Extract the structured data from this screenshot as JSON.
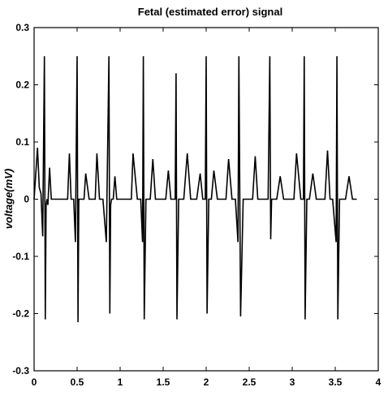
{
  "chart_data": {
    "type": "line",
    "title": "Fetal (estimated error) signal",
    "xlabel": "",
    "ylabel": "voltage(mV)",
    "xlim": [
      0,
      4
    ],
    "ylim": [
      -0.3,
      0.3
    ],
    "xticks": [
      "0",
      "0.5",
      "1",
      "1.5",
      "2",
      "2.5",
      "3",
      "3.5",
      "4"
    ],
    "yticks": [
      "0.3",
      "0.2",
      "0.1",
      "0",
      "-0.1",
      "-0.2",
      "-0.3"
    ],
    "grid": false,
    "series": [
      {
        "name": "",
        "color": "#000000",
        "x": [
          0.0,
          0.04,
          0.06,
          0.08,
          0.1,
          0.12,
          0.13,
          0.14,
          0.15,
          0.16,
          0.18,
          0.2,
          0.22,
          0.24,
          0.27,
          0.3,
          0.33,
          0.36,
          0.39,
          0.41,
          0.43,
          0.46,
          0.48,
          0.5,
          0.51,
          0.52,
          0.53,
          0.55,
          0.58,
          0.6,
          0.64,
          0.68,
          0.71,
          0.73,
          0.76,
          0.8,
          0.84,
          0.87,
          0.88,
          0.89,
          0.9,
          0.92,
          0.94,
          0.96,
          0.98,
          1.0,
          1.02,
          1.05,
          1.09,
          1.13,
          1.15,
          1.2,
          1.24,
          1.26,
          1.27,
          1.28,
          1.3,
          1.32,
          1.35,
          1.38,
          1.41,
          1.44,
          1.47,
          1.5,
          1.53,
          1.56,
          1.59,
          1.61,
          1.64,
          1.65,
          1.66,
          1.68,
          1.71,
          1.74,
          1.78,
          1.82,
          1.85,
          1.89,
          1.93,
          1.96,
          1.99,
          2.0,
          2.01,
          2.03,
          2.06,
          2.09,
          2.13,
          2.16,
          2.2,
          2.23,
          2.26,
          2.3,
          2.34,
          2.37,
          2.38,
          2.4,
          2.43,
          2.47,
          2.51,
          2.54,
          2.57,
          2.6,
          2.64,
          2.67,
          2.7,
          2.72,
          2.74,
          2.75,
          2.76,
          2.78,
          2.82,
          2.86,
          2.9,
          2.93,
          2.96,
          2.99,
          3.02,
          3.05,
          3.1,
          3.13,
          3.14,
          3.15,
          3.17,
          3.2,
          3.24,
          3.28,
          3.3,
          3.33,
          3.36,
          3.38,
          3.41,
          3.44,
          3.47,
          3.51,
          3.52,
          3.53,
          3.55,
          3.58,
          3.62,
          3.66,
          3.7,
          3.75
        ],
        "y": [
          0.0,
          0.09,
          0.02,
          0.01,
          -0.065,
          0.25,
          -0.21,
          -0.01,
          0.0,
          -0.01,
          0.055,
          0.0,
          0.0,
          0.0,
          0.0,
          0.0,
          0.0,
          0.0,
          0.0,
          0.08,
          0.0,
          0.0,
          -0.075,
          0.25,
          -0.215,
          0.0,
          0.0,
          0.0,
          0.0,
          0.045,
          0.0,
          0.0,
          0.0,
          0.08,
          0.0,
          0.0,
          -0.075,
          0.25,
          -0.2,
          -0.01,
          0.0,
          0.0,
          0.04,
          0.0,
          0.0,
          0.0,
          0.0,
          0.0,
          0.0,
          0.0,
          0.08,
          0.0,
          0.0,
          -0.075,
          0.25,
          -0.21,
          0.0,
          0.0,
          0.0,
          0.07,
          0.0,
          0.0,
          0.0,
          0.0,
          0.0,
          0.05,
          0.0,
          0.0,
          0.0,
          0.22,
          -0.21,
          0.0,
          0.0,
          0.0,
          0.08,
          0.0,
          0.0,
          0.0,
          0.045,
          0.0,
          0.0,
          0.25,
          -0.2,
          0.0,
          0.0,
          0.05,
          0.0,
          0.0,
          0.0,
          0.0,
          0.07,
          0.0,
          0.0,
          -0.075,
          0.25,
          -0.205,
          0.0,
          0.0,
          0.0,
          0.0,
          0.075,
          0.0,
          0.0,
          0.0,
          0.0,
          0.0,
          0.25,
          -0.07,
          0.0,
          0.0,
          0.0,
          0.04,
          0.0,
          0.0,
          0.0,
          0.0,
          0.0,
          0.08,
          0.0,
          0.0,
          0.25,
          -0.21,
          0.0,
          0.0,
          0.045,
          0.0,
          0.0,
          0.0,
          0.0,
          0.0,
          0.085,
          0.0,
          0.0,
          -0.075,
          0.25,
          -0.21,
          0.0,
          0.0,
          0.0,
          0.04,
          0.0,
          0.0
        ]
      }
    ]
  }
}
